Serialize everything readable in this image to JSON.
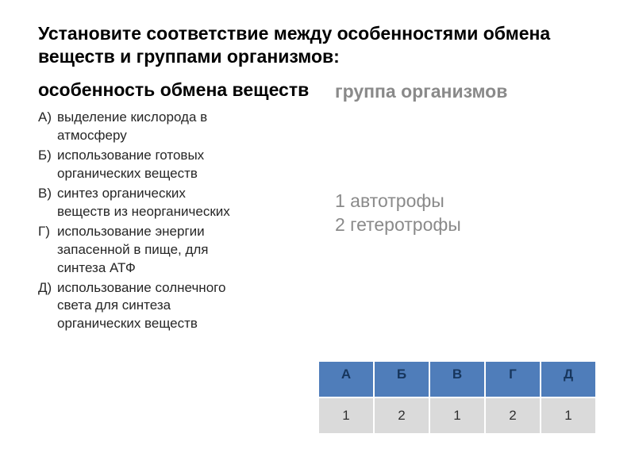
{
  "title": "Установите соответствие между особенностями обмена веществ и группами организмов:",
  "left_header": "особенность обмена веществ",
  "right_header": "группа организмов",
  "left_items": [
    {
      "letter": "А)",
      "lines": [
        "выделение кислорода в",
        "атмосферу"
      ]
    },
    {
      "letter": "Б)",
      "lines": [
        "использование готовых",
        "органических веществ"
      ]
    },
    {
      "letter": "В)",
      "lines": [
        "синтез органических",
        "веществ из неорганических"
      ]
    },
    {
      "letter": "Г)",
      "lines": [
        "использование энергии",
        "запасенной в пище, для",
        "синтеза АТФ"
      ]
    },
    {
      "letter": "Д)",
      "lines": [
        "использование солнечного",
        "света для синтеза",
        "органических веществ"
      ]
    }
  ],
  "right_items": [
    "1 автотрофы",
    "2 гетеротрофы"
  ],
  "table": {
    "headers": [
      "А",
      "Б",
      "В",
      "Г",
      "Д"
    ],
    "values": [
      "1",
      "2",
      "1",
      "2",
      "1"
    ],
    "header_bg": "#4f7dba",
    "header_fg": "#17365d",
    "data_bg": "#dadada",
    "data_fg": "#303030",
    "cell_border": "#ffffff"
  },
  "colors": {
    "background": "#ffffff",
    "text_primary": "#000000",
    "text_muted": "#8a8a8a"
  },
  "fonts": {
    "title_size": 23,
    "header_size": 23,
    "item_size": 17
  }
}
